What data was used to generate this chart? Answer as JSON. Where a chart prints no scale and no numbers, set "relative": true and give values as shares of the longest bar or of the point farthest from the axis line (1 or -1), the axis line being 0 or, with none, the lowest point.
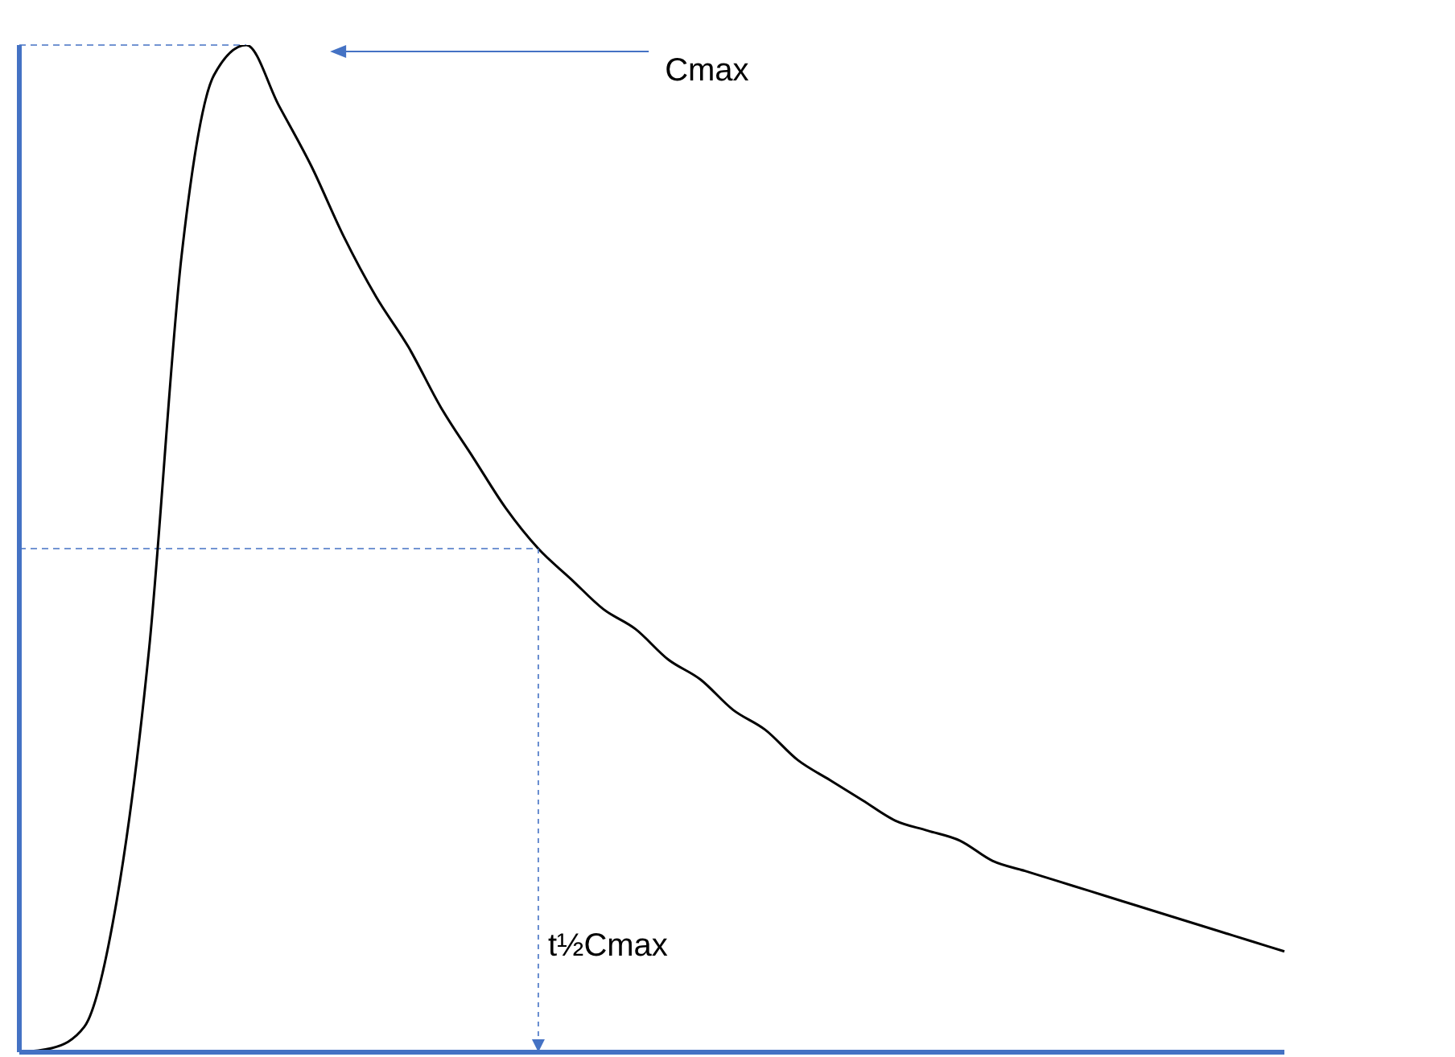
{
  "chart_data": {
    "type": "line",
    "relative": true,
    "marker": "none",
    "categories": [
      null,
      null,
      null,
      null,
      null,
      null,
      null,
      null,
      null,
      null,
      null,
      null,
      null,
      null,
      null,
      null,
      null,
      null,
      null,
      null,
      null,
      null,
      null,
      null,
      null,
      null,
      null,
      null,
      null,
      null,
      null,
      null,
      null,
      null,
      null,
      null,
      null,
      null,
      null,
      null
    ],
    "series": [
      {
        "color": "#000000",
        "values": [
          0,
          0.004,
          0.025,
          0.15,
          0.4,
          0.79,
          0.97,
          1.0,
          0.94,
          0.88,
          0.81,
          0.75,
          0.7,
          0.64,
          0.59,
          0.54,
          0.5,
          0.47,
          0.44,
          0.42,
          0.39,
          0.37,
          0.34,
          0.32,
          0.29,
          0.27,
          0.25,
          0.23,
          0.22,
          0.21,
          0.19,
          0.18,
          0.17,
          0.16,
          0.15,
          0.14,
          0.13,
          0.12,
          0.11,
          0.1
        ]
      }
    ],
    "ref_lines": [
      {
        "axis": "y",
        "value": 1,
        "color": "#4472c4",
        "line_style": "dashed"
      },
      {
        "axis": "y",
        "value": 0.5,
        "color": "#4472c4",
        "line_style": "dashed"
      }
    ],
    "annotations": [
      "Cmax",
      "t½Cmax"
    ]
  }
}
